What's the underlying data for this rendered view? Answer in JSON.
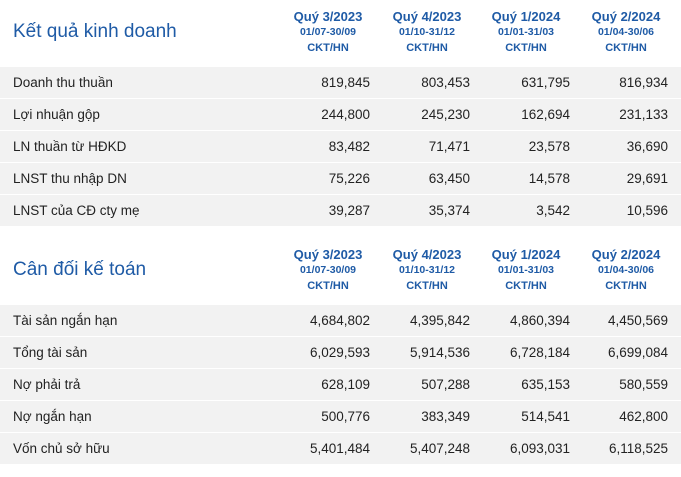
{
  "business": {
    "title": "Kết quả kinh doanh",
    "columns": [
      {
        "quarter": "Quý 3/2023",
        "range": "01/07-30/09",
        "unit": "CKT/HN"
      },
      {
        "quarter": "Quý 4/2023",
        "range": "01/10-31/12",
        "unit": "CKT/HN"
      },
      {
        "quarter": "Quý 1/2024",
        "range": "01/01-31/03",
        "unit": "CKT/HN"
      },
      {
        "quarter": "Quý 2/2024",
        "range": "01/04-30/06",
        "unit": "CKT/HN"
      }
    ],
    "rows": [
      {
        "label": "Doanh thu thuần",
        "values": [
          "819,845",
          "803,453",
          "631,795",
          "816,934"
        ]
      },
      {
        "label": "Lợi nhuận gộp",
        "values": [
          "244,800",
          "245,230",
          "162,694",
          "231,133"
        ]
      },
      {
        "label": "LN thuần từ HĐKD",
        "values": [
          "83,482",
          "71,471",
          "23,578",
          "36,690"
        ]
      },
      {
        "label": "LNST thu nhập DN",
        "values": [
          "75,226",
          "63,450",
          "14,578",
          "29,691"
        ]
      },
      {
        "label": "LNST của CĐ cty mẹ",
        "values": [
          "39,287",
          "35,374",
          "3,542",
          "10,596"
        ]
      }
    ]
  },
  "balance": {
    "title": "Cân đối kế toán",
    "columns": [
      {
        "quarter": "Quý 3/2023",
        "range": "01/07-30/09",
        "unit": "CKT/HN"
      },
      {
        "quarter": "Quý 4/2023",
        "range": "01/10-31/12",
        "unit": "CKT/HN"
      },
      {
        "quarter": "Quý 1/2024",
        "range": "01/01-31/03",
        "unit": "CKT/HN"
      },
      {
        "quarter": "Quý 2/2024",
        "range": "01/04-30/06",
        "unit": "CKT/HN"
      }
    ],
    "rows": [
      {
        "label": "Tài sản ngắn hạn",
        "values": [
          "4,684,802",
          "4,395,842",
          "4,860,394",
          "4,450,569"
        ]
      },
      {
        "label": "Tổng tài sản",
        "values": [
          "6,029,593",
          "5,914,536",
          "6,728,184",
          "6,699,084"
        ]
      },
      {
        "label": "Nợ phải trả",
        "values": [
          "628,109",
          "507,288",
          "635,153",
          "580,559"
        ]
      },
      {
        "label": "Nợ ngắn hạn",
        "values": [
          "500,776",
          "383,349",
          "514,541",
          "462,800"
        ]
      },
      {
        "label": "Vốn chủ sở hữu",
        "values": [
          "5,401,484",
          "5,407,248",
          "6,093,031",
          "6,118,525"
        ]
      }
    ]
  }
}
